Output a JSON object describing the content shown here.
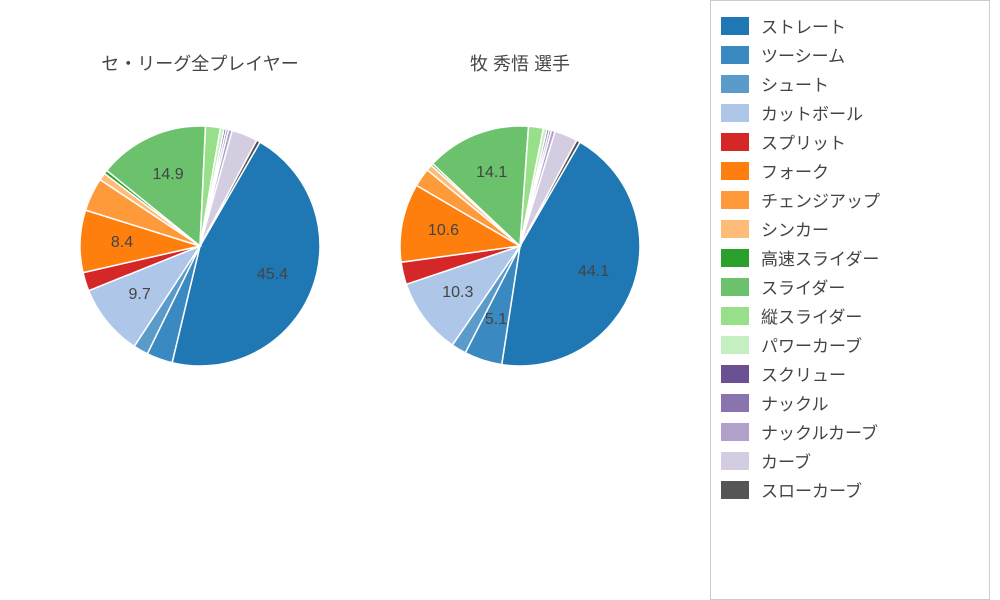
{
  "background_color": "#ffffff",
  "text_color": "#444444",
  "label_fontsize": 16,
  "title_fontsize": 18,
  "legend_fontsize": 17,
  "pie_radius": 120,
  "start_angle_deg": 60,
  "direction": "clockwise",
  "label_threshold": 5.0,
  "pies": [
    {
      "title": "セ・リーグ全プレイヤー",
      "slices": [
        {
          "label": "ストレート",
          "value": 45.4,
          "color": "#1f77b4"
        },
        {
          "label": "ツーシーム",
          "value": 3.5,
          "color": "#3a89c0"
        },
        {
          "label": "シュート",
          "value": 2.0,
          "color": "#5a9bca"
        },
        {
          "label": "カットボール",
          "value": 9.7,
          "color": "#aec7e8"
        },
        {
          "label": "スプリット",
          "value": 2.5,
          "color": "#d62728"
        },
        {
          "label": "フォーク",
          "value": 8.4,
          "color": "#ff7f0e"
        },
        {
          "label": "チェンジアップ",
          "value": 4.5,
          "color": "#ff9a3b"
        },
        {
          "label": "シンカー",
          "value": 1.0,
          "color": "#ffbb78"
        },
        {
          "label": "高速スライダー",
          "value": 0.5,
          "color": "#2ca02c"
        },
        {
          "label": "スライダー",
          "value": 14.9,
          "color": "#6cc26c"
        },
        {
          "label": "縦スライダー",
          "value": 2.0,
          "color": "#98df8a"
        },
        {
          "label": "パワーカーブ",
          "value": 0.5,
          "color": "#c5efc0"
        },
        {
          "label": "スクリュー",
          "value": 0.3,
          "color": "#6b5094"
        },
        {
          "label": "ナックル",
          "value": 0.3,
          "color": "#8a74ad"
        },
        {
          "label": "ナックルカーブ",
          "value": 0.5,
          "color": "#b0a0ca"
        },
        {
          "label": "カーブ",
          "value": 3.5,
          "color": "#d4cce0"
        },
        {
          "label": "スローカーブ",
          "value": 0.5,
          "color": "#555555"
        }
      ]
    },
    {
      "title": "牧 秀悟  選手",
      "slices": [
        {
          "label": "ストレート",
          "value": 44.1,
          "color": "#1f77b4"
        },
        {
          "label": "ツーシーム",
          "value": 5.1,
          "color": "#3a89c0"
        },
        {
          "label": "シュート",
          "value": 2.0,
          "color": "#5a9bca"
        },
        {
          "label": "カットボール",
          "value": 10.3,
          "color": "#aec7e8"
        },
        {
          "label": "スプリット",
          "value": 3.0,
          "color": "#d62728"
        },
        {
          "label": "フォーク",
          "value": 10.6,
          "color": "#ff7f0e"
        },
        {
          "label": "チェンジアップ",
          "value": 2.5,
          "color": "#ff9a3b"
        },
        {
          "label": "シンカー",
          "value": 0.8,
          "color": "#ffbb78"
        },
        {
          "label": "高速スライダー",
          "value": 0.3,
          "color": "#2ca02c"
        },
        {
          "label": "スライダー",
          "value": 14.1,
          "color": "#6cc26c"
        },
        {
          "label": "縦スライダー",
          "value": 2.0,
          "color": "#98df8a"
        },
        {
          "label": "パワーカーブ",
          "value": 0.5,
          "color": "#c5efc0"
        },
        {
          "label": "スクリュー",
          "value": 0.3,
          "color": "#6b5094"
        },
        {
          "label": "ナックル",
          "value": 0.3,
          "color": "#8a74ad"
        },
        {
          "label": "ナックルカーブ",
          "value": 0.5,
          "color": "#b0a0ca"
        },
        {
          "label": "カーブ",
          "value": 3.1,
          "color": "#d4cce0"
        },
        {
          "label": "スローカーブ",
          "value": 0.5,
          "color": "#555555"
        }
      ]
    }
  ],
  "legend": {
    "border_color": "#cccccc",
    "items": [
      {
        "label": "ストレート",
        "color": "#1f77b4"
      },
      {
        "label": "ツーシーム",
        "color": "#3a89c0"
      },
      {
        "label": "シュート",
        "color": "#5a9bca"
      },
      {
        "label": "カットボール",
        "color": "#aec7e8"
      },
      {
        "label": "スプリット",
        "color": "#d62728"
      },
      {
        "label": "フォーク",
        "color": "#ff7f0e"
      },
      {
        "label": "チェンジアップ",
        "color": "#ff9a3b"
      },
      {
        "label": "シンカー",
        "color": "#ffbb78"
      },
      {
        "label": "高速スライダー",
        "color": "#2ca02c"
      },
      {
        "label": "スライダー",
        "color": "#6cc26c"
      },
      {
        "label": "縦スライダー",
        "color": "#98df8a"
      },
      {
        "label": "パワーカーブ",
        "color": "#c5efc0"
      },
      {
        "label": "スクリュー",
        "color": "#6b5094"
      },
      {
        "label": "ナックル",
        "color": "#8a74ad"
      },
      {
        "label": "ナックルカーブ",
        "color": "#b0a0ca"
      },
      {
        "label": "カーブ",
        "color": "#d4cce0"
      },
      {
        "label": "スローカーブ",
        "color": "#555555"
      }
    ]
  }
}
